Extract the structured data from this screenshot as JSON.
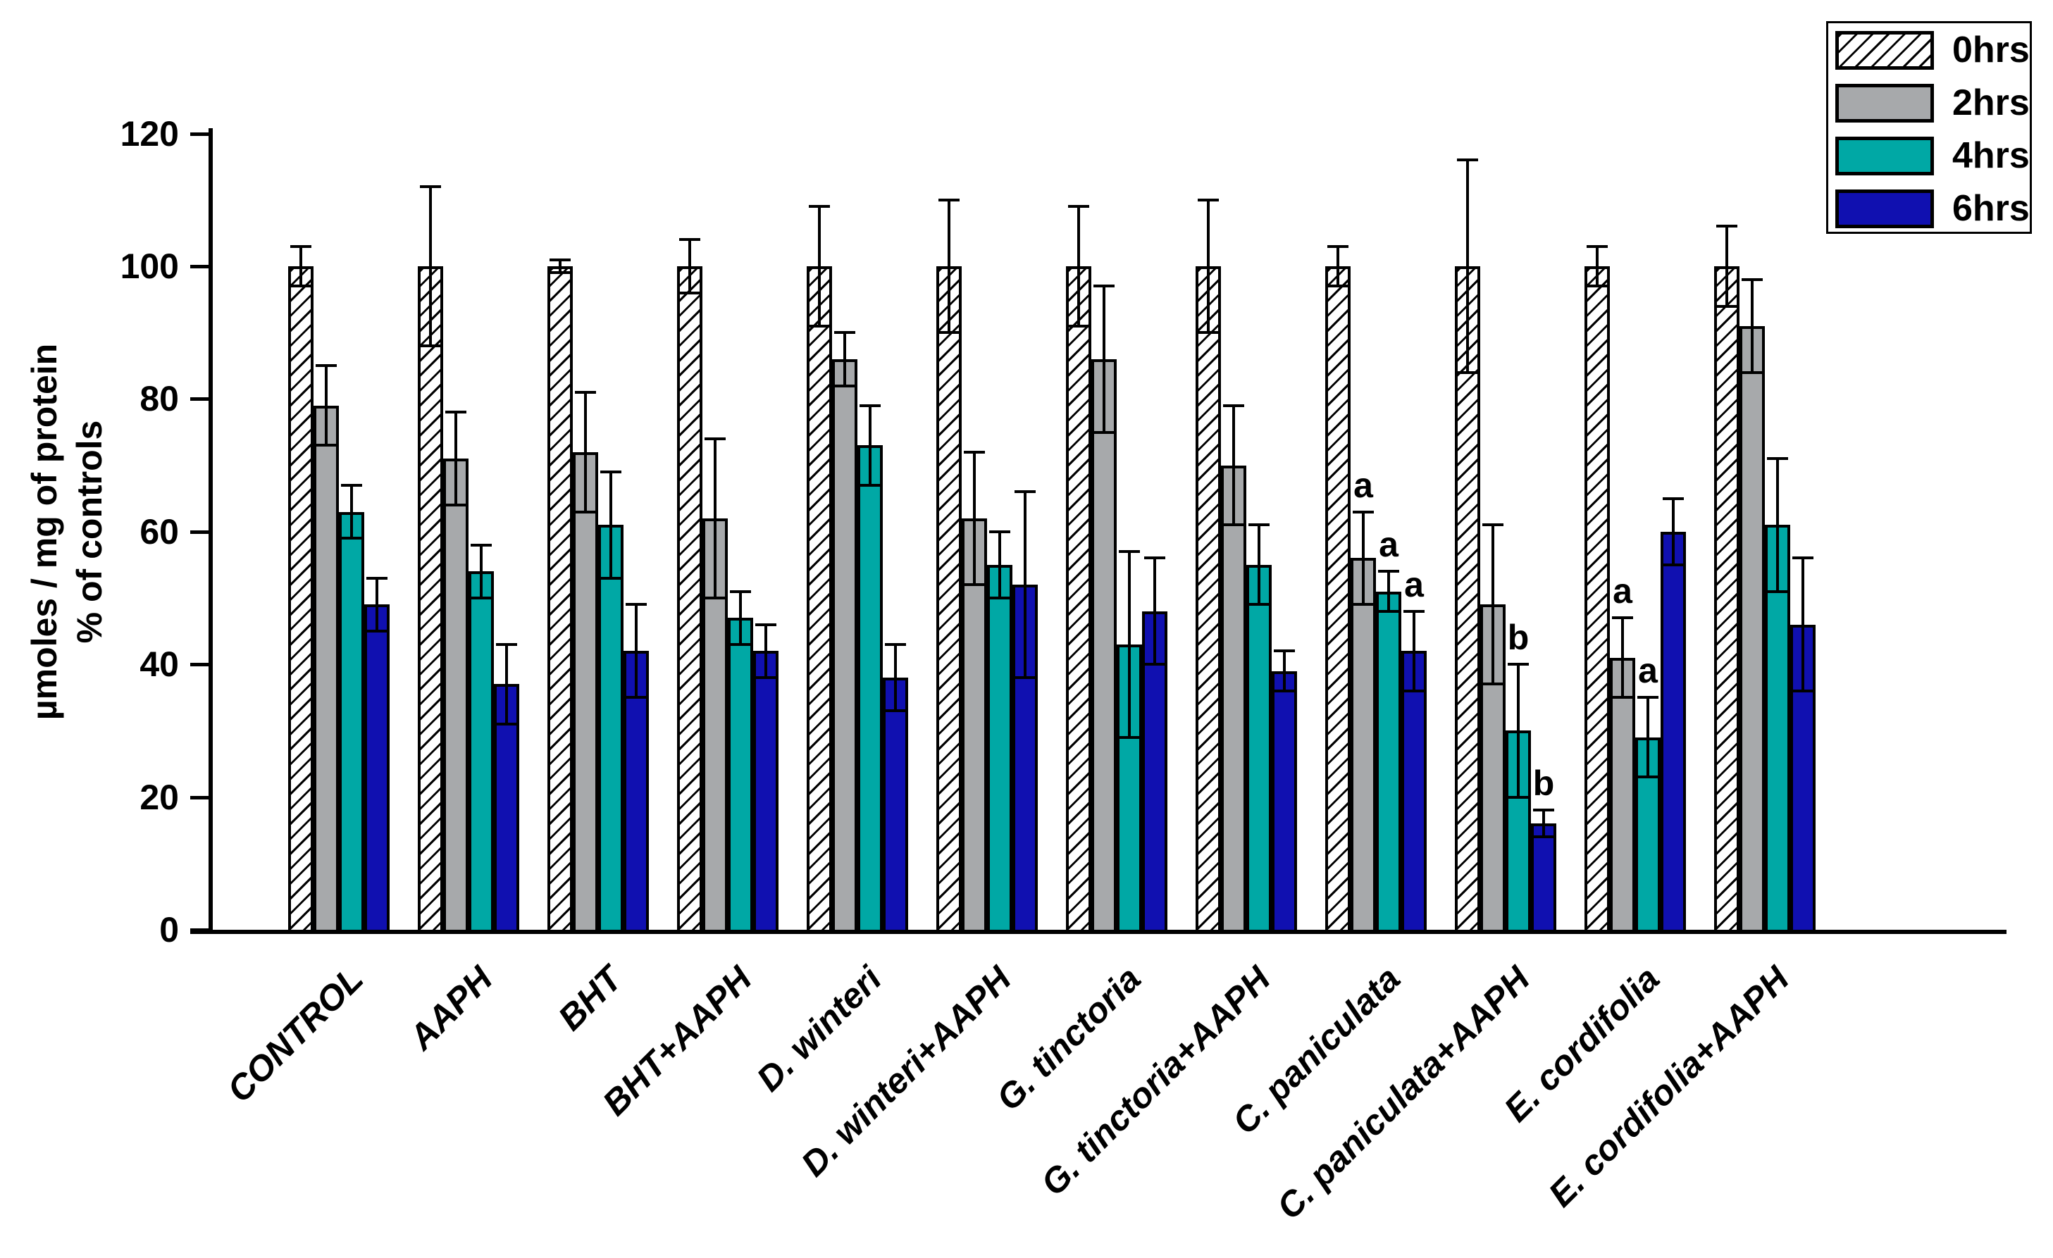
{
  "figure": {
    "background": "#ffffff"
  },
  "y_axis": {
    "title_line1": "µmoles / mg of protein",
    "title_line2": "% of controls"
  },
  "legend": {
    "items": [
      {
        "label": "0hrs",
        "swatch": "hatched"
      },
      {
        "label": "2hrs",
        "swatch": "gray"
      },
      {
        "label": "4hrs",
        "swatch": "teal"
      },
      {
        "label": "6hrs",
        "swatch": "blue"
      }
    ]
  },
  "colors": {
    "hatch_lines": "#000000",
    "gray_2hrs": "#a7a9ab",
    "teal_4hrs": "#00a8a5",
    "blue_6hrs": "#1010b0",
    "axis": "#000000"
  },
  "chart_data": {
    "type": "bar",
    "title": "",
    "xlabel": "",
    "ylabel": "µmoles / mg of protein % of controls",
    "ylim": [
      0,
      120
    ],
    "yticks": [
      0,
      20,
      40,
      60,
      80,
      100,
      120
    ],
    "grid": false,
    "legend_position": "top-right",
    "error_bars": true,
    "categories": [
      "CONTROL",
      "AAPH",
      "BHT",
      "BHT+AAPH",
      "D. winteri",
      "D. winteri+AAPH",
      "G. tinctoria",
      "G. tinctoria+AAPH",
      "C. paniculata",
      "C. paniculata+AAPH",
      "E. cordifolia",
      "E. cordifolia+AAPH"
    ],
    "series": [
      {
        "name": "0hrs",
        "fill": "hatched",
        "values": [
          100,
          100,
          100,
          100,
          100,
          100,
          100,
          100,
          100,
          100,
          100,
          100
        ],
        "errors": [
          3,
          12,
          1,
          4,
          9,
          10,
          9,
          10,
          3,
          16,
          3,
          6
        ]
      },
      {
        "name": "2hrs",
        "fill": "gray",
        "values": [
          79,
          71,
          72,
          62,
          86,
          62,
          86,
          70,
          56,
          49,
          41,
          91
        ],
        "errors": [
          6,
          7,
          9,
          12,
          4,
          10,
          11,
          9,
          7,
          12,
          6,
          7
        ]
      },
      {
        "name": "4hrs",
        "fill": "teal",
        "values": [
          63,
          54,
          61,
          47,
          73,
          55,
          43,
          55,
          51,
          30,
          29,
          61
        ],
        "errors": [
          4,
          4,
          8,
          4,
          6,
          5,
          14,
          6,
          3,
          10,
          6,
          10
        ]
      },
      {
        "name": "6hrs",
        "fill": "blue",
        "values": [
          49,
          37,
          42,
          42,
          38,
          52,
          48,
          39,
          42,
          16,
          60,
          46
        ],
        "errors": [
          4,
          6,
          7,
          4,
          5,
          14,
          8,
          3,
          6,
          2,
          5,
          10
        ]
      }
    ],
    "annotations": [
      {
        "ci": 8,
        "si": 1,
        "category": "C. paniculata",
        "series": "2hrs",
        "label": "a"
      },
      {
        "ci": 8,
        "si": 2,
        "category": "C. paniculata",
        "series": "4hrs",
        "label": "a"
      },
      {
        "ci": 8,
        "si": 3,
        "category": "C. paniculata",
        "series": "6hrs",
        "label": "a"
      },
      {
        "ci": 9,
        "si": 2,
        "category": "C. paniculata+AAPH",
        "series": "4hrs",
        "label": "b"
      },
      {
        "ci": 9,
        "si": 3,
        "category": "C. paniculata+AAPH",
        "series": "6hrs",
        "label": "b"
      },
      {
        "ci": 10,
        "si": 1,
        "category": "E. cordifolia",
        "series": "2hrs",
        "label": "a"
      },
      {
        "ci": 10,
        "si": 2,
        "category": "E. cordifolia",
        "series": "4hrs",
        "label": "a"
      }
    ]
  }
}
